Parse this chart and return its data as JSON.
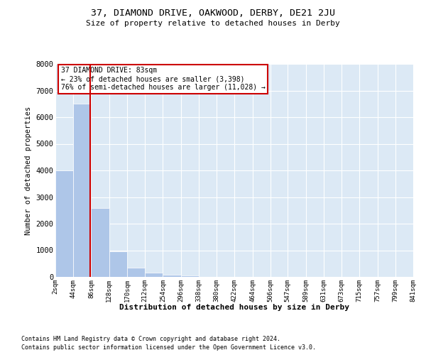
{
  "title": "37, DIAMOND DRIVE, OAKWOOD, DERBY, DE21 2JU",
  "subtitle": "Size of property relative to detached houses in Derby",
  "xlabel": "Distribution of detached houses by size in Derby",
  "ylabel": "Number of detached properties",
  "footer_line1": "Contains HM Land Registry data © Crown copyright and database right 2024.",
  "footer_line2": "Contains public sector information licensed under the Open Government Licence v3.0.",
  "property_size": 83,
  "annotation_title": "37 DIAMOND DRIVE: 83sqm",
  "annotation_line1": "← 23% of detached houses are smaller (3,398)",
  "annotation_line2": "76% of semi-detached houses are larger (11,028) →",
  "bin_edges": [
    2,
    44,
    86,
    128,
    170,
    212,
    254,
    296,
    338,
    380,
    422,
    464,
    506,
    547,
    589,
    631,
    673,
    715,
    757,
    799,
    841
  ],
  "bar_heights": [
    4000,
    6500,
    2600,
    950,
    350,
    150,
    80,
    50,
    0,
    0,
    0,
    0,
    0,
    0,
    0,
    0,
    0,
    0,
    0,
    0
  ],
  "bar_color": "#aec6e8",
  "vline_color": "#cc0000",
  "vline_x": 83,
  "annotation_box_color": "#cc0000",
  "background_color": "#dce9f5",
  "ylim": [
    0,
    8000
  ],
  "yticks": [
    0,
    1000,
    2000,
    3000,
    4000,
    5000,
    6000,
    7000,
    8000
  ]
}
